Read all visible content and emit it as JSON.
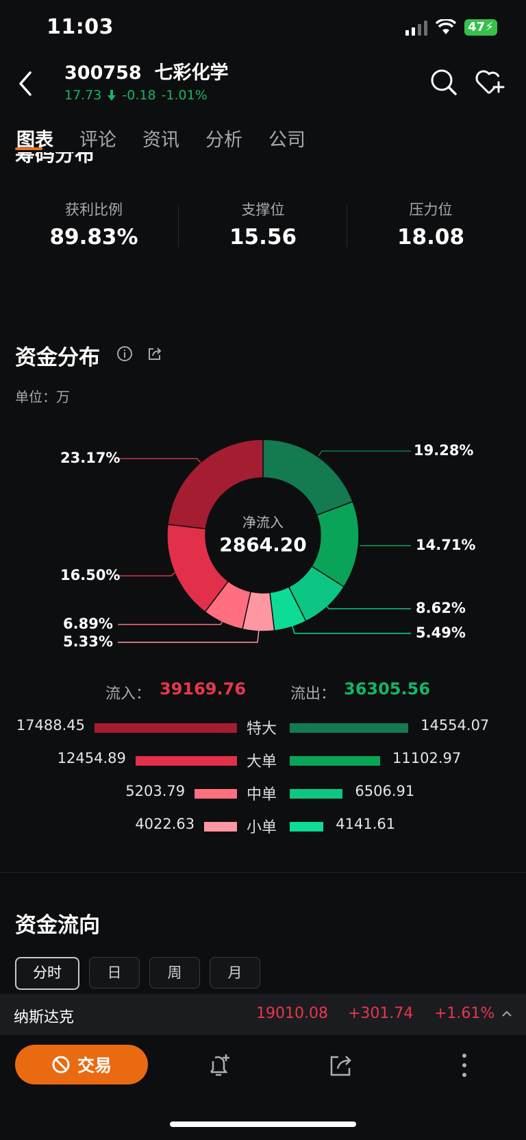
{
  "status_bar": {
    "time": "11:03",
    "battery": "47"
  },
  "header": {
    "title": "300758  七彩化学",
    "price": "17.73",
    "change": "-0.18",
    "change_pct": "-1.01%"
  },
  "tabs": [
    "图表",
    "评论",
    "资讯",
    "分析",
    "公司"
  ],
  "cut_section_title": "筹码分布",
  "stats": [
    {
      "label": "获利比例",
      "value": "89.83%"
    },
    {
      "label": "支撑位",
      "value": "15.56"
    },
    {
      "label": "压力位",
      "value": "18.08"
    }
  ],
  "fund_distribution": {
    "title": "资金分布",
    "unit": "单位：万",
    "center_label": "净流入",
    "center_value": "2864.20",
    "pct_labels": {
      "in_super": "23.17%",
      "in_large": "16.50%",
      "in_medium": "6.89%",
      "in_small": "5.33%",
      "out_super": "19.28%",
      "out_large": "14.71%",
      "out_medium": "8.62%",
      "out_small": "5.49%"
    },
    "inflow_label": "流入：",
    "inflow_total": "39169.76",
    "outflow_label": "流出：",
    "outflow_total": "36305.56",
    "rows": [
      {
        "label": "特大",
        "in": "17488.45",
        "out": "14554.07"
      },
      {
        "label": "大单",
        "in": "12454.89",
        "out": "11102.97"
      },
      {
        "label": "中单",
        "in": "5203.79",
        "out": "6506.91"
      },
      {
        "label": "小单",
        "in": "4022.63",
        "out": "4141.61"
      }
    ]
  },
  "chart_data": {
    "type": "pie",
    "categories": [
      "特大流出",
      "大单流出",
      "中单流出",
      "小单流出",
      "小单流入",
      "中单流入",
      "大单流入",
      "特大流入"
    ],
    "values": [
      19.28,
      14.71,
      8.62,
      5.49,
      5.33,
      6.89,
      16.5,
      23.17
    ],
    "colors": [
      "#147a50",
      "#0aa458",
      "#0ec683",
      "#0cdc96",
      "#ff97a3",
      "#ff6f80",
      "#e2304a",
      "#a51d31"
    ]
  },
  "flow_section": {
    "title": "资金流向",
    "periods": [
      "分时",
      "日",
      "周",
      "月"
    ]
  },
  "ticker": {
    "name": "纳斯达克",
    "value": "19010.08",
    "change": "+301.74",
    "pct": "+1.61%"
  },
  "bottom_bar": {
    "trade_label": "交易"
  },
  "colors": {
    "up": "#e8374e",
    "down": "#13b56a",
    "accent": "#ea6a12"
  }
}
